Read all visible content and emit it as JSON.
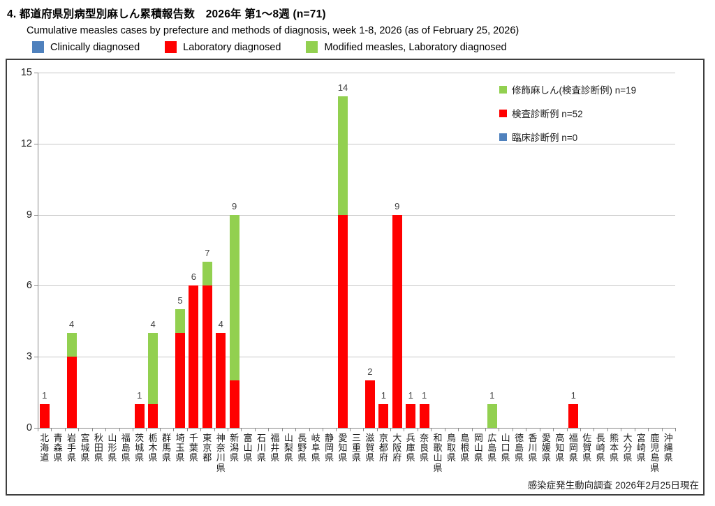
{
  "header": {
    "title": "4. 都道府県別病型別麻しん累積報告数　2026年 第1〜8週 (n=71)",
    "subtitle": "Cumulative measles cases by prefecture and methods of diagnosis, week 1-8, 2026 (as of February 25, 2026)",
    "legend": [
      {
        "label": "Clinically diagnosed",
        "color": "#4F81BD"
      },
      {
        "label": "Laboratory diagnosed",
        "color": "#FF0000"
      },
      {
        "label": "Modified measles, Laboratory diagnosed",
        "color": "#92D050"
      }
    ]
  },
  "chart_data": {
    "type": "bar",
    "stacked": true,
    "title": "4. 都道府県別病型別麻しん累積報告数　2026年 第1〜8週 (n=71)",
    "xlabel": "",
    "ylabel": "",
    "ylim": [
      0,
      15
    ],
    "yticks": [
      0,
      3,
      6,
      9,
      12,
      15
    ],
    "grid": true,
    "legend_position": "top-right-inside",
    "categories": [
      "北海道",
      "青森県",
      "岩手県",
      "宮城県",
      "秋田県",
      "山形県",
      "福島県",
      "茨城県",
      "栃木県",
      "群馬県",
      "埼玉県",
      "千葉県",
      "東京都",
      "神奈川県",
      "新潟県",
      "富山県",
      "石川県",
      "福井県",
      "山梨県",
      "長野県",
      "岐阜県",
      "静岡県",
      "愛知県",
      "三重県",
      "滋賀県",
      "京都府",
      "大阪府",
      "兵庫県",
      "奈良県",
      "和歌山県",
      "鳥取県",
      "島根県",
      "岡山県",
      "広島県",
      "山口県",
      "徳島県",
      "香川県",
      "愛媛県",
      "高知県",
      "福岡県",
      "佐賀県",
      "長崎県",
      "熊本県",
      "大分県",
      "宮崎県",
      "鹿児島県",
      "沖縄県"
    ],
    "series": [
      {
        "name": "臨床診断例",
        "legend_label": "臨床診断例 n=0",
        "color": "#4F81BD",
        "values": [
          0,
          0,
          0,
          0,
          0,
          0,
          0,
          0,
          0,
          0,
          0,
          0,
          0,
          0,
          0,
          0,
          0,
          0,
          0,
          0,
          0,
          0,
          0,
          0,
          0,
          0,
          0,
          0,
          0,
          0,
          0,
          0,
          0,
          0,
          0,
          0,
          0,
          0,
          0,
          0,
          0,
          0,
          0,
          0,
          0,
          0,
          0
        ]
      },
      {
        "name": "検査診断例",
        "legend_label": "検査診断例 n=52",
        "color": "#FF0000",
        "values": [
          1,
          0,
          3,
          0,
          0,
          0,
          0,
          1,
          1,
          0,
          4,
          6,
          6,
          4,
          2,
          0,
          0,
          0,
          0,
          0,
          0,
          0,
          9,
          0,
          2,
          1,
          9,
          1,
          1,
          0,
          0,
          0,
          0,
          0,
          0,
          0,
          0,
          0,
          0,
          1,
          0,
          0,
          0,
          0,
          0,
          0,
          0
        ]
      },
      {
        "name": "修飾麻しん(検査診断例)",
        "legend_label": "修飾麻しん(検査診断例) n=19",
        "color": "#92D050",
        "values": [
          0,
          0,
          1,
          0,
          0,
          0,
          0,
          0,
          3,
          0,
          1,
          0,
          1,
          0,
          7,
          0,
          0,
          0,
          0,
          0,
          0,
          0,
          5,
          0,
          0,
          0,
          0,
          0,
          0,
          0,
          0,
          0,
          0,
          1,
          0,
          0,
          0,
          0,
          0,
          0,
          0,
          0,
          0,
          0,
          0,
          0,
          0
        ]
      }
    ],
    "bar_totals": [
      1,
      0,
      4,
      0,
      0,
      0,
      0,
      1,
      4,
      0,
      5,
      6,
      7,
      4,
      9,
      0,
      0,
      0,
      0,
      0,
      0,
      0,
      14,
      0,
      2,
      1,
      9,
      1,
      1,
      0,
      0,
      0,
      0,
      1,
      0,
      0,
      0,
      0,
      0,
      1,
      0,
      0,
      0,
      0,
      0,
      0,
      0
    ],
    "inner_legend": [
      {
        "label": "修飾麻しん(検査診断例) n=19",
        "color": "#92D050"
      },
      {
        "label": "検査診断例 n=52",
        "color": "#FF0000"
      },
      {
        "label": "臨床診断例 n=0",
        "color": "#4F81BD"
      }
    ],
    "footnote": "感染症発生動向調査 2026年2月25日現在"
  },
  "colors": {
    "grid": "#c6c6c6",
    "axis": "#898989",
    "value_label": "#3f3f3f",
    "box_border": "#3f3f3f"
  }
}
